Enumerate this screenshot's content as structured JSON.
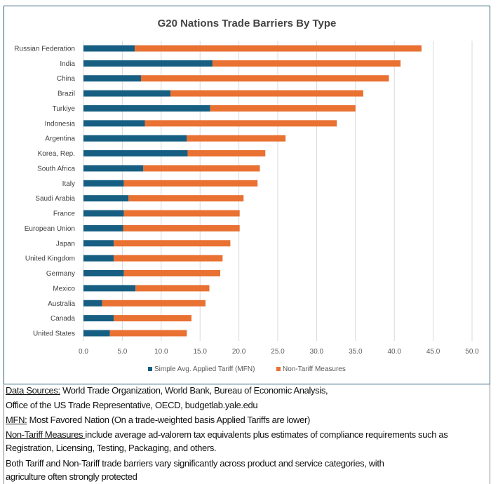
{
  "chart_data": {
    "type": "bar",
    "orientation": "horizontal",
    "stacked": true,
    "title": "G20 Nations Trade Barriers By Type",
    "categories": [
      "Russian Federation",
      "India",
      "China",
      "Brazil",
      "Turkiye",
      "Indonesia",
      "Argentina",
      "Korea, Rep.",
      "South Africa",
      "Italy",
      "Saudi Arabia",
      "France",
      "European Union",
      "Japan",
      "United Kingdom",
      "Germany",
      "Mexico",
      "Australia",
      "Canada",
      "United States"
    ],
    "series": [
      {
        "name": "Simple Avg. Applied Tariff (MFN)",
        "color": "#175f82",
        "values": [
          6.6,
          16.6,
          7.4,
          11.2,
          16.3,
          7.9,
          13.3,
          13.4,
          7.7,
          5.2,
          5.8,
          5.2,
          5.1,
          3.9,
          3.9,
          5.2,
          6.7,
          2.4,
          3.9,
          3.4
        ]
      },
      {
        "name": "Non-Tariff Measures",
        "color": "#e97132",
        "values": [
          36.9,
          24.2,
          31.9,
          24.8,
          18.7,
          24.7,
          12.7,
          10.0,
          15.0,
          17.2,
          14.8,
          14.9,
          15.0,
          15.0,
          14.0,
          12.4,
          9.5,
          13.3,
          10.0,
          9.9
        ]
      }
    ],
    "xlim": [
      0,
      50
    ],
    "xticks": [
      "0.0",
      "5.0",
      "10.0",
      "15.0",
      "20.0",
      "25.0",
      "30.0",
      "35.0",
      "40.0",
      "45.0",
      "50.0"
    ],
    "grid": true,
    "legend_position": "bottom"
  },
  "notes": {
    "sources_label": "Data Sources:",
    "sources_line1": " World Trade Organization, World Bank, Bureau of Economic Analysis,",
    "sources_line2": "Office of the US Trade Representative, OECD, budgetlab.yale.edu",
    "mfn_label": "MFN:",
    "mfn_text": " Most Favored Nation (On a trade-weighted basis Applied Tariffs are lower)",
    "ntm_label": "Non-Tariff Measures ",
    "ntm_text1": "include average ad-valorem tax equivalents plus estimates of compliance requirements such as",
    "ntm_text2": "Registration, Licensing, Testing, Packaging, and others.",
    "both_line1": "Both Tariff and Non-Tariff trade barriers vary significantly across product and service categories, with",
    "both_line2": "agriculture often strongly protected"
  }
}
